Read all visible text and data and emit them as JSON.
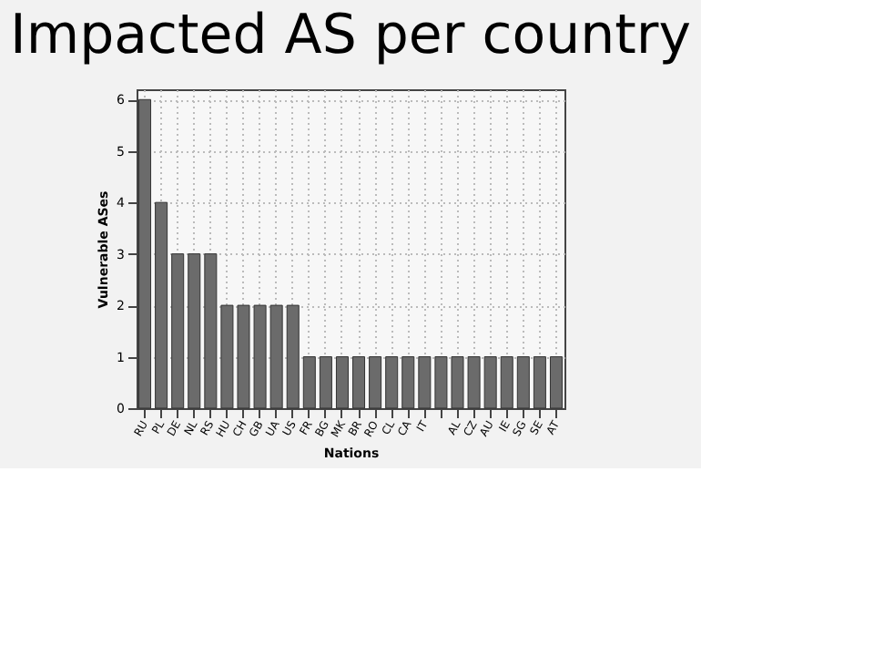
{
  "chart_data": {
    "type": "bar",
    "title": "Impacted AS per country",
    "xlabel": "Nations",
    "ylabel": "Vulnerable ASes",
    "categories": [
      "RU",
      "PL",
      "DE",
      "NL",
      "RS",
      "HU",
      "CH",
      "GB",
      "UA",
      "US",
      "FR",
      "BG",
      "MK",
      "BR",
      "RO",
      "CL",
      "CA",
      "IT",
      null,
      "AL",
      "CZ",
      "AU",
      "IE",
      "SG",
      "SE",
      "AT"
    ],
    "values": [
      6,
      4,
      3,
      3,
      3,
      2,
      2,
      2,
      2,
      2,
      1,
      1,
      1,
      1,
      1,
      1,
      1,
      1,
      1,
      1,
      1,
      1,
      1,
      1,
      1,
      1
    ],
    "color": "#6b6b6b",
    "ylim": [
      0,
      6.2
    ],
    "yticks": [
      0,
      1,
      2,
      3,
      4,
      5,
      6
    ],
    "grid": true
  }
}
